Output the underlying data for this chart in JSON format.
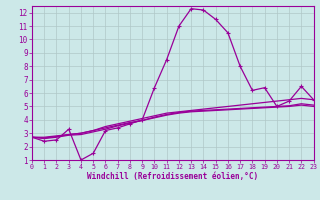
{
  "title": "",
  "xlabel": "Windchill (Refroidissement éolien,°C)",
  "ylabel": "",
  "xlim": [
    0,
    23
  ],
  "ylim": [
    1,
    12.5
  ],
  "xticks": [
    0,
    1,
    2,
    3,
    4,
    5,
    6,
    7,
    8,
    9,
    10,
    11,
    12,
    13,
    14,
    15,
    16,
    17,
    18,
    19,
    20,
    21,
    22,
    23
  ],
  "yticks": [
    1,
    2,
    3,
    4,
    5,
    6,
    7,
    8,
    9,
    10,
    11,
    12
  ],
  "background_color": "#cce8e8",
  "grid_color": "#b0c8c8",
  "line_color": "#990099",
  "line1_x": [
    0,
    1,
    2,
    3,
    4,
    5,
    6,
    7,
    8,
    9,
    10,
    11,
    12,
    13,
    14,
    15,
    16,
    17,
    18,
    19,
    20,
    21,
    22,
    23
  ],
  "line1_y": [
    2.7,
    2.4,
    2.5,
    3.3,
    1.0,
    1.5,
    3.2,
    3.4,
    3.7,
    4.0,
    6.4,
    8.5,
    11.0,
    12.3,
    12.2,
    11.5,
    10.5,
    8.0,
    6.2,
    6.4,
    5.0,
    5.4,
    6.5,
    5.5
  ],
  "line2_x": [
    0,
    1,
    2,
    3,
    4,
    5,
    6,
    7,
    8,
    9,
    10,
    11,
    12,
    13,
    14,
    15,
    16,
    17,
    18,
    19,
    20,
    21,
    22,
    23
  ],
  "line2_y": [
    2.7,
    2.7,
    2.8,
    2.9,
    3.0,
    3.2,
    3.5,
    3.7,
    3.9,
    4.1,
    4.3,
    4.5,
    4.6,
    4.7,
    4.8,
    4.9,
    5.0,
    5.1,
    5.2,
    5.3,
    5.4,
    5.5,
    5.6,
    5.5
  ],
  "line3_x": [
    0,
    1,
    2,
    3,
    4,
    5,
    6,
    7,
    8,
    9,
    10,
    11,
    12,
    13,
    14,
    15,
    16,
    17,
    18,
    19,
    20,
    21,
    22,
    23
  ],
  "line3_y": [
    2.7,
    2.6,
    2.7,
    2.85,
    2.9,
    3.1,
    3.3,
    3.55,
    3.75,
    3.95,
    4.15,
    4.35,
    4.5,
    4.6,
    4.65,
    4.7,
    4.75,
    4.8,
    4.85,
    4.9,
    4.95,
    5.0,
    5.1,
    5.0
  ],
  "line4_x": [
    0,
    1,
    2,
    3,
    4,
    5,
    6,
    7,
    8,
    9,
    10,
    11,
    12,
    13,
    14,
    15,
    16,
    17,
    18,
    19,
    20,
    21,
    22,
    23
  ],
  "line4_y": [
    2.7,
    2.65,
    2.75,
    2.9,
    3.0,
    3.2,
    3.4,
    3.6,
    3.8,
    3.95,
    4.2,
    4.4,
    4.55,
    4.65,
    4.7,
    4.75,
    4.8,
    4.85,
    4.9,
    4.95,
    5.0,
    5.05,
    5.2,
    5.1
  ]
}
